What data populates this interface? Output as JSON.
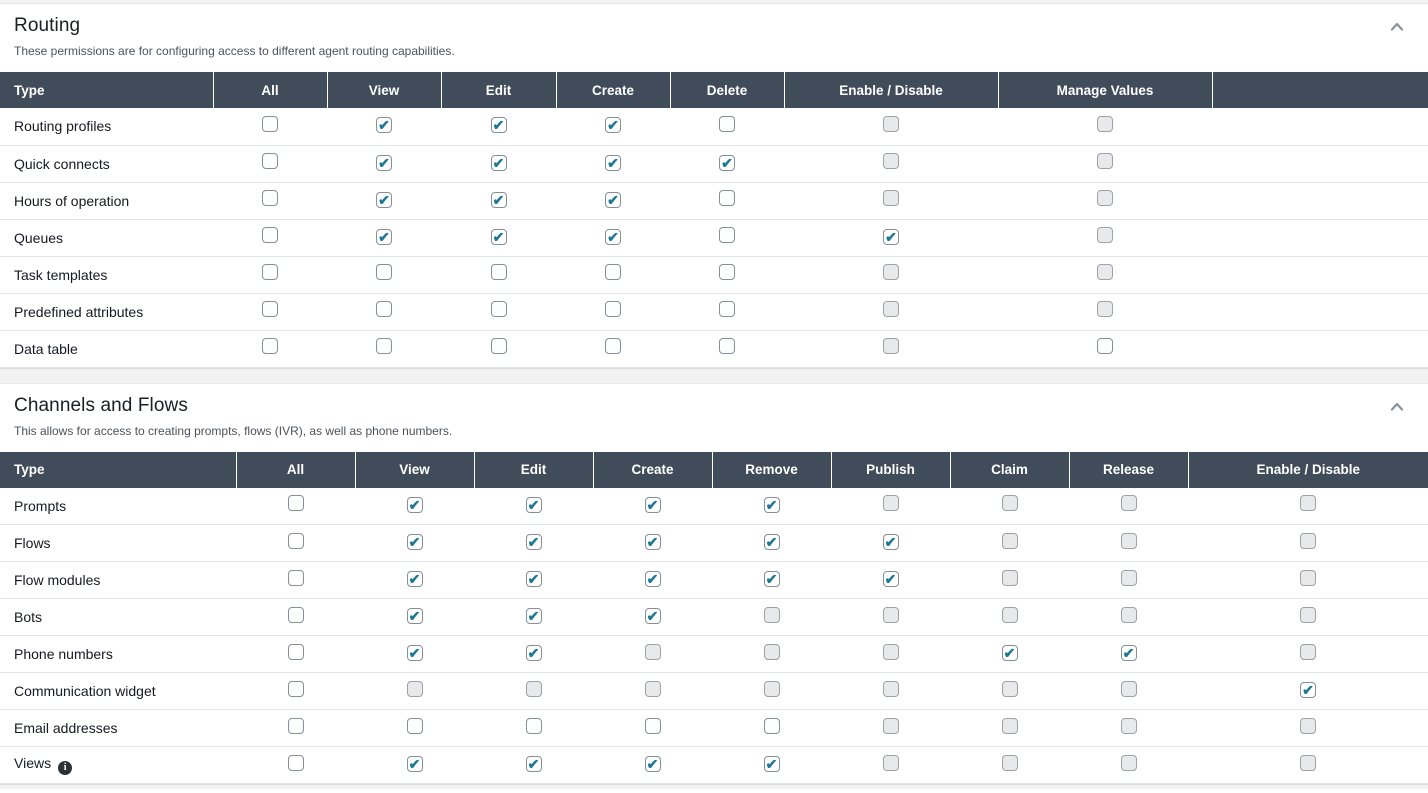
{
  "colors": {
    "header_bg": "#404c5a",
    "header_text": "#ffffff",
    "check_color": "#1d7896",
    "disabled_checkbox_bg": "#e9e9e9",
    "divider_bg": "#f2f2f2",
    "row_border": "#e3e5e8"
  },
  "sections": [
    {
      "title": "Routing",
      "description": "These permissions are for configuring access to different agent routing capabilities.",
      "collapse_icon": "chevron-up",
      "columns": [
        "Type",
        "All",
        "View",
        "Edit",
        "Create",
        "Delete",
        "Enable / Disable",
        "Manage Values",
        ""
      ],
      "rows": [
        {
          "label": "Routing profiles",
          "states": [
            "unchecked",
            "checked",
            "checked",
            "checked",
            "unchecked",
            "disabled",
            "disabled"
          ]
        },
        {
          "label": "Quick connects",
          "states": [
            "unchecked",
            "checked",
            "checked",
            "checked",
            "checked",
            "disabled",
            "disabled"
          ]
        },
        {
          "label": "Hours of operation",
          "states": [
            "unchecked",
            "checked",
            "checked",
            "checked",
            "unchecked",
            "disabled",
            "disabled"
          ]
        },
        {
          "label": "Queues",
          "states": [
            "unchecked",
            "checked",
            "checked",
            "checked",
            "unchecked",
            "checked",
            "disabled"
          ]
        },
        {
          "label": "Task templates",
          "states": [
            "unchecked",
            "unchecked",
            "unchecked",
            "unchecked",
            "unchecked",
            "disabled",
            "disabled"
          ]
        },
        {
          "label": "Predefined attributes",
          "states": [
            "unchecked",
            "unchecked",
            "unchecked",
            "unchecked",
            "unchecked",
            "disabled",
            "disabled"
          ]
        },
        {
          "label": "Data table",
          "states": [
            "unchecked",
            "unchecked",
            "unchecked",
            "unchecked",
            "unchecked",
            "disabled",
            "unchecked"
          ]
        }
      ]
    },
    {
      "title": "Channels and Flows",
      "description": "This allows for access to creating prompts, flows (IVR), as well as phone numbers.",
      "collapse_icon": "chevron-up",
      "columns": [
        "Type",
        "All",
        "View",
        "Edit",
        "Create",
        "Remove",
        "Publish",
        "Claim",
        "Release",
        "Enable / Disable"
      ],
      "rows": [
        {
          "label": "Prompts",
          "states": [
            "unchecked",
            "checked",
            "checked",
            "checked",
            "checked",
            "disabled",
            "disabled",
            "disabled",
            "disabled"
          ]
        },
        {
          "label": "Flows",
          "states": [
            "unchecked",
            "checked",
            "checked",
            "checked",
            "checked",
            "checked",
            "disabled",
            "disabled",
            "disabled"
          ]
        },
        {
          "label": "Flow modules",
          "states": [
            "unchecked",
            "checked",
            "checked",
            "checked",
            "checked",
            "checked",
            "disabled",
            "disabled",
            "disabled"
          ]
        },
        {
          "label": "Bots",
          "states": [
            "unchecked",
            "checked",
            "checked",
            "checked",
            "disabled",
            "disabled",
            "disabled",
            "disabled",
            "disabled"
          ]
        },
        {
          "label": "Phone numbers",
          "states": [
            "unchecked",
            "checked",
            "checked",
            "disabled",
            "disabled",
            "disabled",
            "checked",
            "checked",
            "disabled"
          ]
        },
        {
          "label": "Communication widget",
          "states": [
            "unchecked",
            "disabled",
            "disabled",
            "disabled",
            "disabled",
            "disabled",
            "disabled",
            "disabled",
            "checked"
          ]
        },
        {
          "label": "Email addresses",
          "states": [
            "unchecked",
            "unchecked",
            "unchecked",
            "unchecked",
            "unchecked",
            "disabled",
            "disabled",
            "disabled",
            "disabled"
          ]
        },
        {
          "label": "Views",
          "info_icon": true,
          "states": [
            "unchecked",
            "checked",
            "checked",
            "checked",
            "checked",
            "disabled",
            "disabled",
            "disabled",
            "disabled"
          ]
        }
      ]
    }
  ]
}
